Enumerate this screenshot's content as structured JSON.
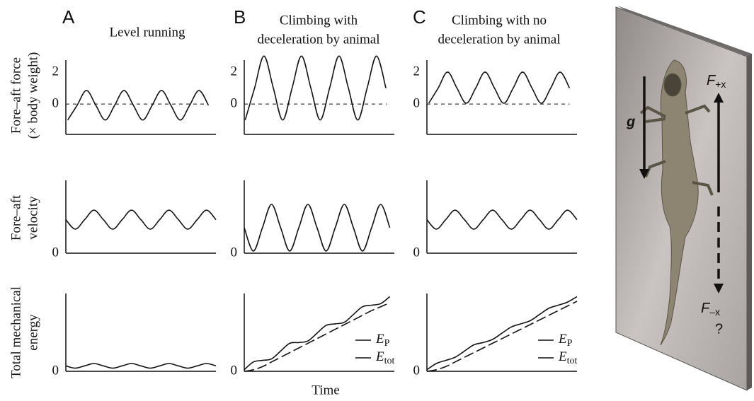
{
  "figure": {
    "columns": [
      {
        "letter": "A",
        "title": [
          "Level running"
        ]
      },
      {
        "letter": "B",
        "title": [
          "Climbing with",
          "deceleration by animal"
        ]
      },
      {
        "letter": "C",
        "title": [
          "Climbing with no",
          "deceleration by animal"
        ]
      }
    ],
    "row_labels": [
      [
        "Fore–aft force",
        "(× body weight)"
      ],
      [
        "Fore–aft",
        "velocity"
      ],
      [
        "Total mechanical",
        "energy"
      ]
    ],
    "x_label": "Time"
  },
  "chart_data": [
    {
      "type": "line",
      "x": [
        0.2,
        1.2,
        2.2,
        3.2,
        4.2,
        5.2,
        6.2,
        7.2,
        8.2,
        9.2,
        10.2,
        11.2,
        12.2,
        13.2,
        14.2,
        15.2
      ],
      "series": [
        {
          "color": "#111111",
          "values": [
            -1,
            -0.08,
            0.85,
            -0.08,
            -1,
            -0.08,
            0.85,
            -0.08,
            -1,
            -0.08,
            0.85,
            -0.08,
            -1,
            -0.08,
            0.85,
            -0.08
          ]
        }
      ],
      "xlim": [
        0,
        16
      ],
      "ylim": [
        -1.9,
        2.75
      ],
      "yticks": [
        0,
        2
      ],
      "hline": 0
    },
    {
      "type": "line",
      "x": [
        0.1,
        1.1,
        2.1,
        3.1,
        4.1,
        5.1,
        6.1,
        7.1,
        8.1,
        9.1,
        10.1,
        11.1,
        12.1,
        13.1,
        14.1,
        15.1
      ],
      "series": [
        {
          "color": "#111111",
          "values": [
            -1,
            1,
            3,
            1,
            -1,
            1,
            3,
            1,
            -1,
            1,
            3,
            1,
            -1,
            1,
            3,
            1
          ]
        }
      ],
      "xlim": [
        0,
        16
      ],
      "ylim": [
        -1.9,
        2.75
      ],
      "yticks": [
        0,
        2
      ],
      "hline": 0
    },
    {
      "type": "line",
      "x": [
        0.2,
        1.2,
        2.2,
        3.2,
        4.2,
        5.2,
        6.2,
        7.2,
        8.2,
        9.2,
        10.2,
        11.2,
        12.2,
        13.2,
        14.2,
        15.2
      ],
      "series": [
        {
          "color": "#111111",
          "values": [
            0.05,
            1,
            2,
            1,
            0.05,
            1,
            2,
            1,
            0.05,
            1,
            2,
            1,
            0.05,
            1,
            2,
            1
          ]
        }
      ],
      "xlim": [
        0,
        16
      ],
      "ylim": [
        -1.9,
        2.75
      ],
      "yticks": [
        0,
        2
      ],
      "hline": 0
    },
    {
      "type": "line",
      "x": [
        0,
        1,
        2,
        3,
        4,
        5,
        6,
        7,
        8,
        9,
        10,
        11,
        12,
        13,
        14,
        15,
        16
      ],
      "series": [
        {
          "color": "#111111",
          "values": [
            46,
            33,
            46,
            59,
            46,
            33,
            46,
            59,
            46,
            33,
            46,
            59,
            46,
            33,
            46,
            59,
            46
          ]
        }
      ],
      "xlim": [
        0,
        16
      ],
      "ylim": [
        0,
        100
      ],
      "yticks": [
        0
      ]
    },
    {
      "type": "line",
      "x": [
        0,
        1,
        2,
        3,
        4,
        5,
        6,
        7,
        8,
        9,
        10,
        11,
        12,
        13,
        14,
        15,
        16
      ],
      "series": [
        {
          "color": "#111111",
          "values": [
            35,
            3,
            35,
            67,
            35,
            3,
            35,
            67,
            35,
            3,
            35,
            67,
            35,
            3,
            35,
            67,
            35
          ]
        }
      ],
      "xlim": [
        0,
        16.5
      ],
      "ylim": [
        0,
        100
      ],
      "yticks": [
        0
      ]
    },
    {
      "type": "line",
      "x": [
        0,
        1,
        2,
        3,
        4,
        5,
        6,
        7,
        8,
        9,
        10,
        11,
        12,
        13,
        14,
        15,
        16
      ],
      "series": [
        {
          "color": "#111111",
          "values": [
            46,
            33,
            46,
            59,
            46,
            33,
            46,
            59,
            46,
            33,
            46,
            59,
            46,
            33,
            46,
            59,
            46
          ]
        }
      ],
      "xlim": [
        0,
        16
      ],
      "ylim": [
        0,
        100
      ],
      "yticks": [
        0
      ]
    },
    {
      "type": "line",
      "x": [
        0,
        1,
        2,
        3,
        4,
        5,
        6,
        7,
        8,
        9,
        10,
        11,
        12,
        13,
        14,
        15,
        16
      ],
      "series": [
        {
          "color": "#111111",
          "values": [
            7,
            4,
            7,
            10,
            7,
            4,
            7,
            10,
            7,
            4,
            7,
            10,
            7,
            4,
            7,
            10,
            7
          ]
        }
      ],
      "xlim": [
        0,
        16
      ],
      "ylim": [
        0,
        100
      ],
      "yticks": [
        0
      ]
    },
    {
      "type": "line",
      "x": [
        0,
        1,
        2,
        3,
        4,
        5,
        6,
        7,
        8,
        9,
        10,
        11,
        12,
        13,
        14,
        15,
        16
      ],
      "series": [
        {
          "name": "E",
          "subscript": "P",
          "color": "#111111",
          "dash": true,
          "values": [
            0,
            2,
            6,
            12,
            18,
            24,
            30,
            36,
            42,
            48,
            54,
            60,
            66,
            72,
            78,
            83,
            88
          ]
        },
        {
          "name": "E",
          "subscript": "tot",
          "color": "#111111",
          "dash": false,
          "values": [
            2,
            12,
            14,
            16,
            26,
            36,
            37,
            39,
            49,
            59,
            61,
            63,
            73,
            83,
            85,
            87,
            96
          ]
        }
      ],
      "xlim": [
        0,
        16.5
      ],
      "ylim": [
        0,
        100
      ],
      "yticks": [
        0
      ]
    },
    {
      "type": "line",
      "x": [
        0,
        1,
        2,
        3,
        4,
        5,
        6,
        7,
        8,
        9,
        10,
        11,
        12,
        13,
        14,
        15,
        16
      ],
      "series": [
        {
          "name": "E",
          "subscript": "P",
          "color": "#111111",
          "dash": true,
          "values": [
            0,
            2,
            6,
            12,
            18,
            24,
            30,
            36,
            42,
            48,
            54,
            60,
            66,
            72,
            78,
            84,
            90
          ]
        },
        {
          "name": "E",
          "subscript": "tot",
          "color": "#111111",
          "dash": false,
          "values": [
            2,
            10,
            14,
            18,
            26,
            34,
            37,
            41,
            49,
            57,
            61,
            65,
            73,
            81,
            85,
            89,
            96
          ]
        }
      ],
      "xlim": [
        0,
        16
      ],
      "ylim": [
        0,
        100
      ],
      "yticks": [
        0
      ]
    }
  ],
  "illustration": {
    "gravity_label": "g",
    "forward_force": {
      "symbol": "F",
      "subscript": "+x"
    },
    "backward_force": {
      "symbol": "F",
      "subscript": "–x"
    },
    "question": "?"
  }
}
